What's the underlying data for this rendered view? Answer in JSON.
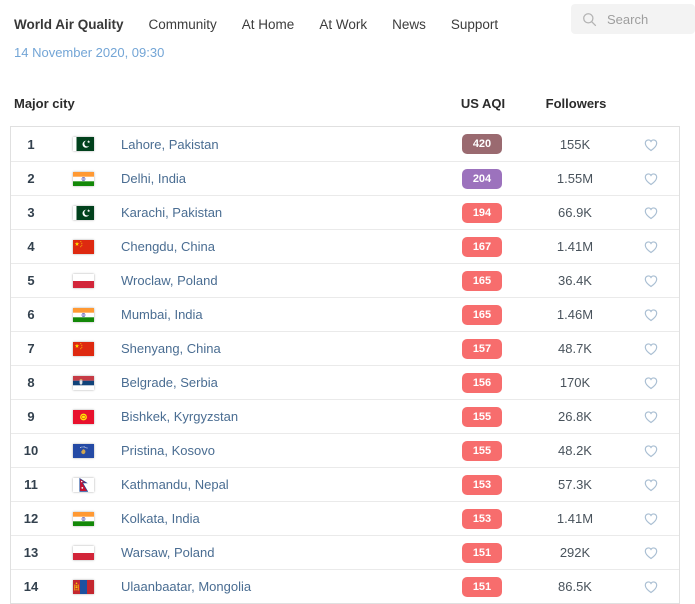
{
  "nav": {
    "brand": "World Air Quality",
    "items": [
      "Community",
      "At Home",
      "At Work",
      "News",
      "Support"
    ],
    "search": {
      "placeholder": "Search",
      "icon": "magnifier"
    }
  },
  "date_line": "14 November 2020, 09:30",
  "table": {
    "headers": {
      "city": "Major city",
      "aqi": "US AQI",
      "followers": "Followers"
    },
    "favorite_icon": "heart-outline",
    "rows": [
      {
        "rank": "1",
        "flag": "pk",
        "city": "Lahore, Pakistan",
        "aqi": "420",
        "aqi_color": "#9a6a70",
        "followers": "155K"
      },
      {
        "rank": "2",
        "flag": "in",
        "city": "Delhi, India",
        "aqi": "204",
        "aqi_color": "#9c72bd",
        "followers": "1.55M"
      },
      {
        "rank": "3",
        "flag": "pk",
        "city": "Karachi, Pakistan",
        "aqi": "194",
        "aqi_color": "#f76d6d",
        "followers": "66.9K"
      },
      {
        "rank": "4",
        "flag": "cn",
        "city": "Chengdu, China",
        "aqi": "167",
        "aqi_color": "#f76d6d",
        "followers": "1.41M"
      },
      {
        "rank": "5",
        "flag": "pl",
        "city": "Wroclaw, Poland",
        "aqi": "165",
        "aqi_color": "#f76d6d",
        "followers": "36.4K"
      },
      {
        "rank": "6",
        "flag": "in",
        "city": "Mumbai, India",
        "aqi": "165",
        "aqi_color": "#f76d6d",
        "followers": "1.46M"
      },
      {
        "rank": "7",
        "flag": "cn",
        "city": "Shenyang, China",
        "aqi": "157",
        "aqi_color": "#f76d6d",
        "followers": "48.7K"
      },
      {
        "rank": "8",
        "flag": "rs",
        "city": "Belgrade, Serbia",
        "aqi": "156",
        "aqi_color": "#f76d6d",
        "followers": "170K"
      },
      {
        "rank": "9",
        "flag": "kg",
        "city": "Bishkek, Kyrgyzstan",
        "aqi": "155",
        "aqi_color": "#f76d6d",
        "followers": "26.8K"
      },
      {
        "rank": "10",
        "flag": "xk",
        "city": "Pristina, Kosovo",
        "aqi": "155",
        "aqi_color": "#f76d6d",
        "followers": "48.2K"
      },
      {
        "rank": "11",
        "flag": "np",
        "city": "Kathmandu, Nepal",
        "aqi": "153",
        "aqi_color": "#f76d6d",
        "followers": "57.3K"
      },
      {
        "rank": "12",
        "flag": "in",
        "city": "Kolkata, India",
        "aqi": "153",
        "aqi_color": "#f76d6d",
        "followers": "1.41M"
      },
      {
        "rank": "13",
        "flag": "pl",
        "city": "Warsaw, Poland",
        "aqi": "151",
        "aqi_color": "#f76d6d",
        "followers": "292K"
      },
      {
        "rank": "14",
        "flag": "mn",
        "city": "Ulaanbaatar, Mongolia",
        "aqi": "151",
        "aqi_color": "#f76d6d",
        "followers": "86.5K"
      }
    ]
  },
  "colors": {
    "aqi_unhealthy": "#f76d6d",
    "aqi_very_unhealthy": "#9c72bd",
    "aqi_hazardous": "#9a6a70",
    "city_link": "#4a6d92",
    "date_text": "#73a5d6",
    "heart_outline": "#aabfd3"
  }
}
